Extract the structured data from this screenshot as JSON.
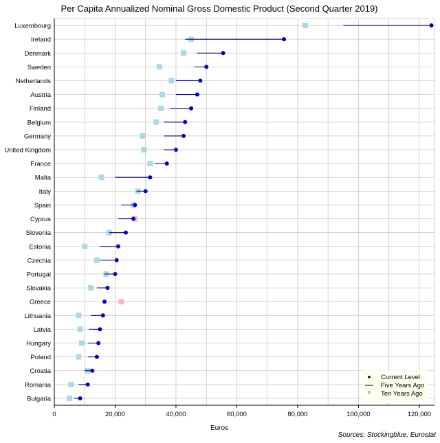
{
  "chart_data": {
    "type": "scatter",
    "title": "Per Capita Annualized Nominal Gross Domestic Product (Second Quarter 2019)",
    "xlabel": "Euros",
    "ylabel": "",
    "xlim": [
      0,
      125000
    ],
    "x_ticks": [
      0,
      20000,
      40000,
      60000,
      80000,
      100000,
      120000
    ],
    "x_tick_labels": [
      "0",
      "20,000",
      "40,000",
      "60,000",
      "80,000",
      "100,000",
      "120,000"
    ],
    "grid": true,
    "legend_position": "bottom-right",
    "legend": {
      "current": "Current Level",
      "five": "Five Years Ago",
      "ten": "Ten Years Ago"
    },
    "source": "Sources: Stockingblue, Eurostat",
    "colors": {
      "current": "#0000cd",
      "line": "#00008b",
      "ten_lower": "#add8e6",
      "ten_higher": "#ffb6c1",
      "grid": "#c8c8c8",
      "legend_bg": "#fffff0"
    },
    "categories": [
      "Luxembourg",
      "Ireland",
      "Denmark",
      "Sweden",
      "Netherlands",
      "Austria",
      "Finland",
      "Belgium",
      "Germany",
      "United Kingdom",
      "France",
      "Malta",
      "Italy",
      "Spain",
      "Cyprus",
      "Slovenia",
      "Estonia",
      "Czechia",
      "Portugal",
      "Slovakia",
      "Greece",
      "Lithuania",
      "Latvia",
      "Hungary",
      "Poland",
      "Croatia",
      "Romania",
      "Bulgaria"
    ],
    "series": [
      {
        "name": "Current Level",
        "values": [
          124000,
          75500,
          55500,
          50000,
          48000,
          47000,
          45000,
          43000,
          42500,
          40000,
          37000,
          31500,
          30000,
          26500,
          26000,
          23500,
          21000,
          20500,
          20000,
          17500,
          16500,
          16000,
          15000,
          14500,
          14000,
          12500,
          11000,
          8500
        ]
      },
      {
        "name": "Five Years Ago",
        "values": [
          95000,
          43000,
          47000,
          46000,
          40000,
          40000,
          38000,
          36000,
          36000,
          36000,
          33000,
          20000,
          27000,
          22000,
          21000,
          18000,
          15000,
          15000,
          16500,
          14000,
          16000,
          12000,
          11500,
          11000,
          11000,
          10000,
          8000,
          6500
        ]
      },
      {
        "name": "Ten Years Ago",
        "values": [
          82500,
          45000,
          42500,
          34500,
          38500,
          35500,
          35000,
          33500,
          29000,
          29500,
          31500,
          15500,
          27500,
          26000,
          26500,
          18000,
          10000,
          14000,
          17000,
          12000,
          22000,
          8000,
          8500,
          9000,
          8000,
          11000,
          5500,
          5000
        ]
      }
    ]
  }
}
